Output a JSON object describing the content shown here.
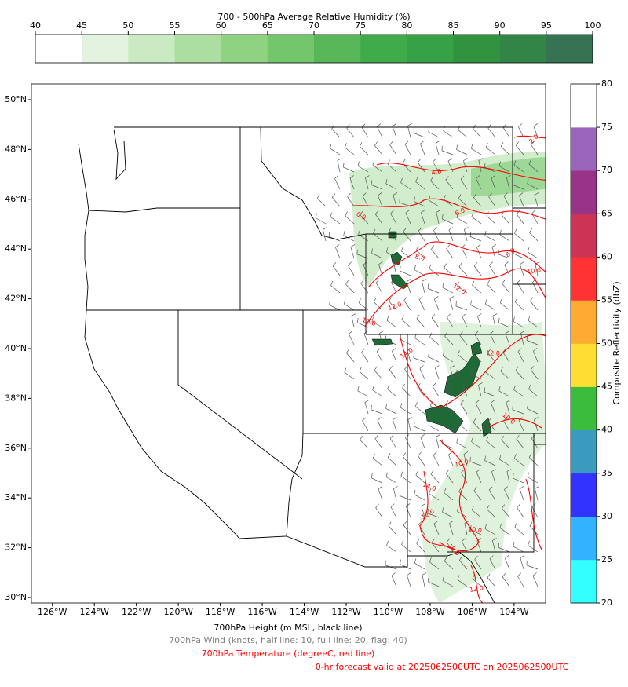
{
  "humidity_colorbar": {
    "title": "700 - 500hPa Average Relative Humidity (%)",
    "range": [
      40,
      100
    ],
    "ticks": [
      40,
      45,
      50,
      55,
      60,
      65,
      70,
      75,
      80,
      85,
      90,
      95,
      100
    ],
    "colors": [
      "#ffffff",
      "#e3f3e0",
      "#c9eac3",
      "#acdea1",
      "#8ed282",
      "#73c66c",
      "#58b758",
      "#40ab4b",
      "#37a145",
      "#31933f",
      "#328447",
      "#357352"
    ]
  },
  "reflectivity_colorbar": {
    "label": "Composite Reflectivity (dbZ)",
    "range": [
      20,
      80
    ],
    "ticks": [
      20,
      25,
      30,
      35,
      40,
      45,
      50,
      55,
      60,
      65,
      70,
      75,
      80
    ],
    "colors": [
      "#33ffff",
      "#33b3ff",
      "#3333ff",
      "#3a9bbf",
      "#3cbc3c",
      "#ffdd33",
      "#ffaa33",
      "#ff3333",
      "#cc3355",
      "#993388",
      "#9966bb",
      "#ffffff"
    ]
  },
  "map": {
    "lonlim": [
      -127,
      -102.5
    ],
    "latlim": [
      29.78,
      50.63
    ],
    "lon_ticks": [
      {
        "value": -126,
        "label": "126°W"
      },
      {
        "value": -124,
        "label": "124°W"
      },
      {
        "value": -122,
        "label": "122°W"
      },
      {
        "value": -120,
        "label": "120°W"
      },
      {
        "value": -118,
        "label": "118°W"
      },
      {
        "value": -116,
        "label": "116°W"
      },
      {
        "value": -114,
        "label": "114°W"
      },
      {
        "value": -112,
        "label": "112°W"
      },
      {
        "value": -110,
        "label": "110°W"
      },
      {
        "value": -108,
        "label": "108°W"
      },
      {
        "value": -106,
        "label": "106°W"
      },
      {
        "value": -104,
        "label": "104°W"
      }
    ],
    "lat_ticks": [
      {
        "value": 30,
        "label": "30°N"
      },
      {
        "value": 32,
        "label": "32°N"
      },
      {
        "value": 34,
        "label": "34°N"
      },
      {
        "value": 36,
        "label": "36°N"
      },
      {
        "value": 38,
        "label": "38°N"
      },
      {
        "value": 40,
        "label": "40°N"
      },
      {
        "value": 42,
        "label": "42°N"
      },
      {
        "value": 44,
        "label": "44°N"
      },
      {
        "value": 46,
        "label": "46°N"
      },
      {
        "value": 48,
        "label": "48°N"
      },
      {
        "value": 50,
        "label": "50°N"
      }
    ],
    "temperature_contour_labels": [
      "2.0",
      "4.0",
      "6.0",
      "6.0",
      "8.0",
      "8.0",
      "10.0",
      "12.0",
      "12.0",
      "10.0",
      "14.0",
      "12.0",
      "10.0",
      "10.0",
      "14.0",
      "12.0",
      "10.0",
      "10.0",
      "12.0"
    ]
  },
  "captions": [
    "700hPa Height (m MSL, black line)",
    "700hPa Wind (knots, half line: 10, full line: 20, flag: 40)",
    "700hPa Temperature (degreeC, red line)",
    "0-hr forecast valid at 2025062500UTC on 2025062500UTC"
  ]
}
